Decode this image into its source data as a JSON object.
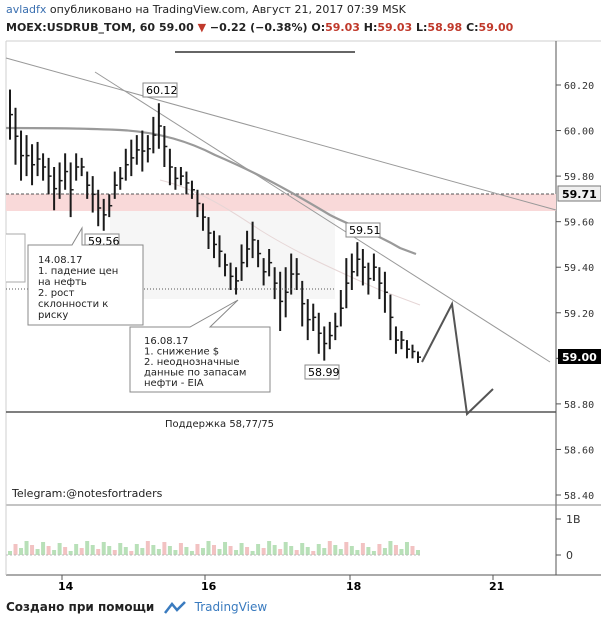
{
  "header": {
    "author": "avladfx",
    "published_text": "опубликовано на TradingView.com, Август 21, 2017 07:39 MSK",
    "symbol": "MOEX:USDRUB_TOM, 60",
    "last": "59.00",
    "change_arrow": "▼",
    "change": "−0.22 (−0.38%)",
    "o_label": "O:",
    "o_val": "59.03",
    "h_label": "H:",
    "h_val": "59.03",
    "l_label": "L:",
    "l_val": "58.98",
    "c_label": "C:",
    "c_val": "59.00"
  },
  "chart_data": {
    "type": "candlestick",
    "ylim": [
      58.35,
      60.32
    ],
    "y_ticks": [
      "60.20",
      "60.00",
      "59.80",
      "59.60",
      "59.40",
      "59.20",
      "59.00",
      "58.80",
      "58.60",
      "58.40"
    ],
    "x_ticks": [
      "14",
      "16",
      "18",
      "21"
    ],
    "price_labels": {
      "current": "59.00",
      "resistance": "59.71"
    },
    "point_labels": [
      "60.12",
      "59.56",
      "59.51",
      "58.99"
    ],
    "support_label": "Поддержка 58,77/75",
    "support_level": 58.76,
    "resistance_level": 59.71,
    "volume_ticks": [
      "1B",
      "0"
    ],
    "annotations": [
      "14.08.17\n1. падение цен\nна нефть\n2. рост\nсклонности к\nриску",
      "16.08.17\n1. снижение $\n2. неоднозначные\nданные по запасам\nнефти - EIA"
    ]
  },
  "watermark": "Telegram:@notesfortraders",
  "footer": {
    "created_with": "Создано при помощи",
    "brand": "TradingView"
  },
  "colors": {
    "candle": "#1a1a1a",
    "highlight_band": "#f9d9d9",
    "current_price_bg": "#000000",
    "up_volume": "#b8e0b8",
    "down_volume": "#f2c2c2",
    "brand": "#3a7bbf"
  }
}
